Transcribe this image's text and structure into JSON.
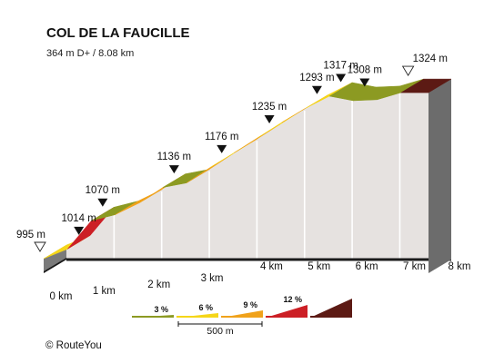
{
  "chart_data": {
    "type": "area",
    "title": "COL DE LA FAUCILLE",
    "subtitle": "364 m D+ / 8.08 km",
    "distance_unit": "km",
    "elevation_unit": "m",
    "km_ticks": [
      "0 km",
      "1 km",
      "2 km",
      "3 km",
      "4 km",
      "5 km",
      "6 km",
      "7 km",
      "8 km"
    ],
    "profile": [
      {
        "km": 0,
        "elevation": 995
      },
      {
        "km": 0.5,
        "elevation": 1014
      },
      {
        "km": 1,
        "elevation": 1070
      },
      {
        "km": 1.5,
        "elevation": 1082
      },
      {
        "km": 2,
        "elevation": 1105
      },
      {
        "km": 2.5,
        "elevation": 1136
      },
      {
        "km": 3,
        "elevation": 1145
      },
      {
        "km": 3.5,
        "elevation": 1176
      },
      {
        "km": 4,
        "elevation": 1205
      },
      {
        "km": 4.5,
        "elevation": 1235
      },
      {
        "km": 5,
        "elevation": 1265
      },
      {
        "km": 5.5,
        "elevation": 1293
      },
      {
        "km": 6,
        "elevation": 1317
      },
      {
        "km": 6.5,
        "elevation": 1308
      },
      {
        "km": 7,
        "elevation": 1310
      },
      {
        "km": 7.5,
        "elevation": 1324
      },
      {
        "km": 8.08,
        "elevation": 1324
      }
    ],
    "segments": [
      {
        "from_km": 0,
        "to_km": 0.5,
        "grade_color": "#F5D619"
      },
      {
        "from_km": 0.5,
        "to_km": 1,
        "grade_color": "#CC1F25"
      },
      {
        "from_km": 1,
        "to_km": 1.5,
        "grade_color": "#8C9A22"
      },
      {
        "from_km": 1.5,
        "to_km": 2,
        "grade_color": "#F0A21B"
      },
      {
        "from_km": 2,
        "to_km": 2.5,
        "grade_color": "#F0A21B"
      },
      {
        "from_km": 2.5,
        "to_km": 3,
        "grade_color": "#8C9A22"
      },
      {
        "from_km": 3,
        "to_km": 3.5,
        "grade_color": "#F0A21B"
      },
      {
        "from_km": 3.5,
        "to_km": 4,
        "grade_color": "#F5D619"
      },
      {
        "from_km": 4,
        "to_km": 4.5,
        "grade_color": "#F0A21B"
      },
      {
        "from_km": 4.5,
        "to_km": 5,
        "grade_color": "#F5D619"
      },
      {
        "from_km": 5,
        "to_km": 5.5,
        "grade_color": "#F0A21B"
      },
      {
        "from_km": 5.5,
        "to_km": 6,
        "grade_color": "#F5D619"
      },
      {
        "from_km": 6,
        "to_km": 6.5,
        "grade_color": "#8C9A22"
      },
      {
        "from_km": 6.5,
        "to_km": 7,
        "grade_color": "#8C9A22"
      },
      {
        "from_km": 7,
        "to_km": 7.5,
        "grade_color": "#8C9A22"
      },
      {
        "from_km": 7.5,
        "to_km": 8.08,
        "grade_color": "#5C1A14"
      }
    ],
    "elevation_labels": [
      {
        "km": 0,
        "text": "995 m",
        "marker": "start"
      },
      {
        "km": 0.5,
        "text": "1014 m",
        "marker": "down"
      },
      {
        "km": 1,
        "text": "1070 m",
        "marker": "down"
      },
      {
        "km": 2.5,
        "text": "1136 m",
        "marker": "down"
      },
      {
        "km": 3.5,
        "text": "1176 m",
        "marker": "down"
      },
      {
        "km": 4.5,
        "text": "1235 m",
        "marker": "down"
      },
      {
        "km": 5.5,
        "text": "1293 m",
        "marker": "down"
      },
      {
        "km": 6,
        "text": "1317 m",
        "marker": "down"
      },
      {
        "km": 6.5,
        "text": "1308 m",
        "marker": "down"
      },
      {
        "km": 7.5,
        "text": "1324 m",
        "marker": "end"
      }
    ],
    "legend": {
      "items": [
        {
          "label": "3 %",
          "color": "#8C9A22"
        },
        {
          "label": "6 %",
          "color": "#F5D619"
        },
        {
          "label": "9 %",
          "color": "#F0A21B"
        },
        {
          "label": "12 %",
          "color": "#CC1F25"
        },
        {
          "label": "",
          "color": "#5C1A14"
        }
      ],
      "scale_label": "500 m"
    },
    "colors": {
      "wall": "#E6E2E0",
      "wall_divider": "#FFFFFF",
      "edge": "#1A1A1A",
      "end_block": "#6C6C6C"
    }
  },
  "credit": "© RouteYou"
}
